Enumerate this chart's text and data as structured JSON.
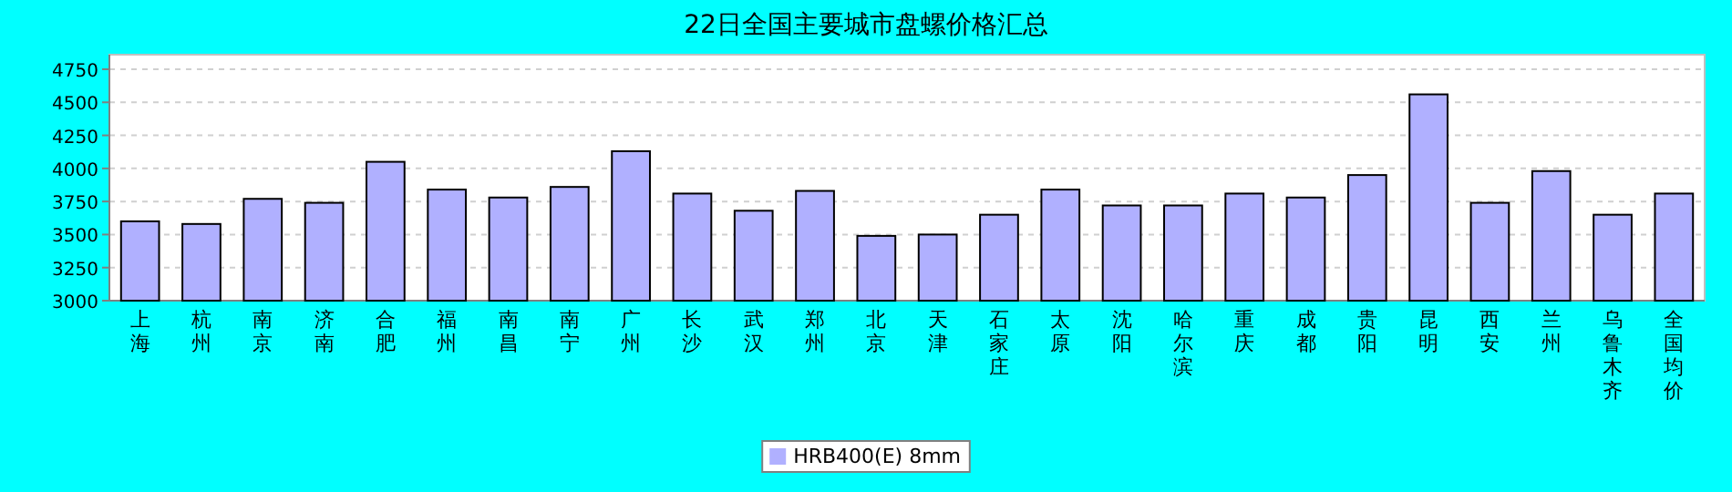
{
  "chart_data": {
    "type": "bar",
    "title": "22日全国主要城市盘螺价格汇总",
    "categories": [
      "上海",
      "杭州",
      "南京",
      "济南",
      "合肥",
      "福州",
      "南昌",
      "南宁",
      "广州",
      "长沙",
      "武汉",
      "郑州",
      "北京",
      "天津",
      "石家庄",
      "太原",
      "沈阳",
      "哈尔滨",
      "重庆",
      "成都",
      "贵阳",
      "昆明",
      "西安",
      "兰州",
      "乌鲁木齐",
      "全国均价"
    ],
    "series": [
      {
        "name": "HRB400(E) 8mm",
        "color": "#b0b0ff",
        "values": [
          3600,
          3580,
          3770,
          3740,
          4050,
          3840,
          3780,
          3860,
          4130,
          3810,
          3680,
          3830,
          3490,
          3500,
          3650,
          3840,
          3720,
          3720,
          3810,
          3780,
          3950,
          4560,
          3740,
          3980,
          3650,
          3810
        ]
      }
    ],
    "ylim": [
      3000,
      4750
    ],
    "yticks": [
      3000,
      3250,
      3500,
      3750,
      4000,
      4250,
      4500,
      4750
    ],
    "grid": "y",
    "legend": "bottom"
  }
}
